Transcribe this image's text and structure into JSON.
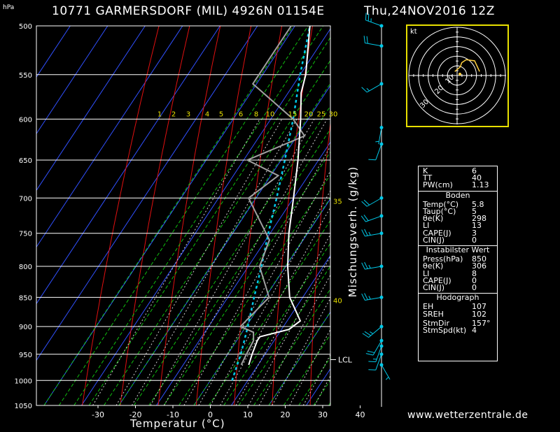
{
  "header": {
    "station_title": "10771 GARMERSDORF (MIL) 4926N 01154E",
    "datetime": "Thu,24NOV2016 12Z",
    "pressure_unit": "hPa",
    "credit": "www.wetterzentrale.de"
  },
  "chart_data": {
    "type": "skew-t log-p sounding",
    "xlabel": "Temperatur (°C)",
    "ylabel_mixing": "Mischungsverh. (g/kg)",
    "x_ticks": [
      -30,
      -20,
      -10,
      0,
      10,
      20,
      30,
      40
    ],
    "pressure_levels": [
      500,
      550,
      600,
      650,
      700,
      750,
      800,
      850,
      900,
      950,
      1000,
      1050
    ],
    "mixing_ratio_labels": [
      "1",
      "2",
      "3",
      "4",
      "5",
      "6",
      "8",
      "10",
      "15",
      "20",
      "25",
      "30"
    ],
    "theta_labels": [
      {
        "p": 700,
        "text": "35"
      },
      {
        "p": 850,
        "text": "40"
      }
    ],
    "lcl_label": "LCL",
    "lcl_pressure": 960,
    "temperature_profile": [
      {
        "p": 970,
        "t": 7.5
      },
      {
        "p": 950,
        "t": 6.5
      },
      {
        "p": 925,
        "t": 5.5
      },
      {
        "p": 918,
        "t": 5.5
      },
      {
        "p": 905,
        "t": 12
      },
      {
        "p": 890,
        "t": 13.5
      },
      {
        "p": 850,
        "t": 6.5
      },
      {
        "p": 800,
        "t": 0.5
      },
      {
        "p": 750,
        "t": -5
      },
      {
        "p": 700,
        "t": -10
      },
      {
        "p": 650,
        "t": -15.5
      },
      {
        "p": 600,
        "t": -22
      },
      {
        "p": 570,
        "t": -26.5
      },
      {
        "p": 550,
        "t": -28.5
      },
      {
        "p": 500,
        "t": -36
      }
    ],
    "dewpoint_profile": [
      {
        "p": 970,
        "t": 5.5
      },
      {
        "p": 950,
        "t": 5
      },
      {
        "p": 925,
        "t": 4.5
      },
      {
        "p": 910,
        "t": 3
      },
      {
        "p": 900,
        "t": -1.5
      },
      {
        "p": 850,
        "t": 1
      },
      {
        "p": 800,
        "t": -7
      },
      {
        "p": 760,
        "t": -9
      },
      {
        "p": 700,
        "t": -22
      },
      {
        "p": 670,
        "t": -18
      },
      {
        "p": 650,
        "t": -29
      },
      {
        "p": 620,
        "t": -18
      },
      {
        "p": 600,
        "t": -24
      },
      {
        "p": 560,
        "t": -41
      },
      {
        "p": 530,
        "t": -41
      },
      {
        "p": 500,
        "t": -41
      }
    ],
    "parcel_profile": [
      {
        "p": 1000,
        "t": 5.8
      },
      {
        "p": 950,
        "t": 3.5
      },
      {
        "p": 900,
        "t": 0.5
      },
      {
        "p": 850,
        "t": -3
      },
      {
        "p": 800,
        "t": -6.5
      },
      {
        "p": 750,
        "t": -10.5
      },
      {
        "p": 700,
        "t": -14.5
      },
      {
        "p": 650,
        "t": -19
      },
      {
        "p": 600,
        "t": -24
      },
      {
        "p": 550,
        "t": -30
      },
      {
        "p": 500,
        "t": -36
      }
    ],
    "wind_profile": [
      {
        "p": 970,
        "dir": 150,
        "kt": 5
      },
      {
        "p": 950,
        "dir": 200,
        "kt": 10
      },
      {
        "p": 935,
        "dir": 200,
        "kt": 15
      },
      {
        "p": 925,
        "dir": 210,
        "kt": 20
      },
      {
        "p": 900,
        "dir": 230,
        "kt": 25
      },
      {
        "p": 850,
        "dir": 260,
        "kt": 25
      },
      {
        "p": 800,
        "dir": 260,
        "kt": 25
      },
      {
        "p": 750,
        "dir": 260,
        "kt": 25
      },
      {
        "p": 725,
        "dir": 250,
        "kt": 20
      },
      {
        "p": 700,
        "dir": 240,
        "kt": 20
      },
      {
        "p": 630,
        "dir": 200,
        "kt": 10
      },
      {
        "p": 610,
        "dir": 190,
        "kt": 5
      },
      {
        "p": 560,
        "dir": 240,
        "kt": 15
      },
      {
        "p": 520,
        "dir": 280,
        "kt": 20
      },
      {
        "p": 500,
        "dir": 290,
        "kt": 25
      }
    ],
    "hodograph": {
      "unit_label": "kt",
      "ring_labels": [
        "10",
        "20",
        "30"
      ],
      "border_color": "#e8e000"
    },
    "colors": {
      "isotherm": "#3050ff",
      "dry_adiabat": "#e01010",
      "moist_adiabat": "#10c010",
      "mixing_ratio": "#d0d0d0",
      "mixing_label": "#e8e000",
      "temperature": "#ffffff",
      "dewpoint": "#a0a0a0",
      "parcel": "#00c8e8",
      "wind": "#00c8e8"
    }
  },
  "indices": {
    "top": [
      {
        "key": "K",
        "value": "6"
      },
      {
        "key": "TT",
        "value": "40"
      },
      {
        "key": "PW(cm)",
        "value": "1.13"
      }
    ],
    "boden_title": "Boden",
    "boden": [
      {
        "key": "Temp(°C)",
        "value": "5.8"
      },
      {
        "key": "Taup(°C)",
        "value": "5"
      },
      {
        "key": "θe(K)",
        "value": "298"
      },
      {
        "key": "LI",
        "value": "13"
      },
      {
        "key": "CAPE(J)",
        "value": "3"
      },
      {
        "key": "CIN(J)",
        "value": "0"
      }
    ],
    "instab_title": "Instabilster Wert",
    "instab": [
      {
        "key": "Press(hPa)",
        "value": "850"
      },
      {
        "key": "θe(K)",
        "value": "306"
      },
      {
        "key": "LI",
        "value": "8"
      },
      {
        "key": "CAPE(J)",
        "value": "0"
      },
      {
        "key": "CIN(J)",
        "value": "0"
      }
    ],
    "hodo_title": "Hodograph",
    "hodo": [
      {
        "key": "EH",
        "value": "107"
      },
      {
        "key": "SREH",
        "value": "102"
      },
      {
        "key": "StmDir",
        "value": "157°"
      },
      {
        "key": "StmSpd(kt)",
        "value": "4"
      }
    ]
  }
}
